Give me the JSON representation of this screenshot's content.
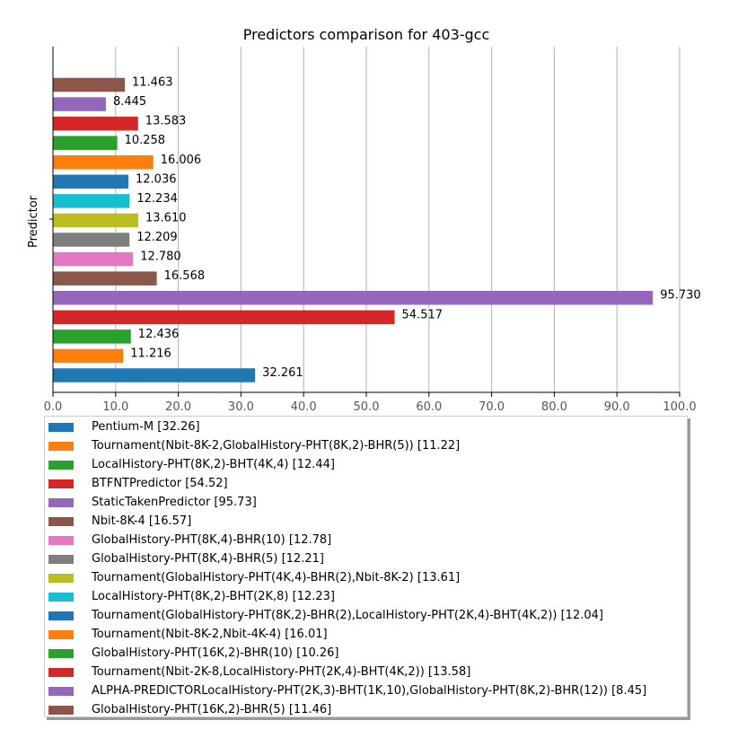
{
  "chart_data": {
    "type": "bar",
    "orientation": "horizontal",
    "title": "Predictors comparison for 403-gcc",
    "xlabel": "",
    "ylabel": "Predictor",
    "xlim": [
      0,
      100
    ],
    "xticks": [
      "0.0",
      "10.0",
      "20.0",
      "30.0",
      "40.0",
      "50.0",
      "60.0",
      "70.0",
      "80.0",
      "90.0",
      "100.0"
    ],
    "grid": "vertical",
    "legend_position": "below",
    "series": [
      {
        "name": "Pentium-M [32.26]",
        "value": 32.261,
        "label": "32.261",
        "color": "#1f77b4"
      },
      {
        "name": "Tournament(Nbit-8K-2,GlobalHistory-PHT(8K,2)-BHR(5)) [11.22]",
        "value": 11.216,
        "label": "11.216",
        "color": "#ff7f0e"
      },
      {
        "name": "LocalHistory-PHT(8K,2)-BHT(4K,4) [12.44]",
        "value": 12.436,
        "label": "12.436",
        "color": "#2ca02c"
      },
      {
        "name": "BTFNTPredictor [54.52]",
        "value": 54.517,
        "label": "54.517",
        "color": "#d62728"
      },
      {
        "name": "StaticTakenPredictor [95.73]",
        "value": 95.73,
        "label": "95.730",
        "color": "#9467bd"
      },
      {
        "name": "Nbit-8K-4 [16.57]",
        "value": 16.568,
        "label": "16.568",
        "color": "#8c564b"
      },
      {
        "name": "GlobalHistory-PHT(8K,4)-BHR(10) [12.78]",
        "value": 12.78,
        "label": "12.780",
        "color": "#e377c2"
      },
      {
        "name": "GlobalHistory-PHT(8K,4)-BHR(5) [12.21]",
        "value": 12.209,
        "label": "12.209",
        "color": "#7f7f7f"
      },
      {
        "name": "Tournament(GlobalHistory-PHT(4K,4)-BHR(2),Nbit-8K-2) [13.61]",
        "value": 13.61,
        "label": "13.610",
        "color": "#bcbd22"
      },
      {
        "name": "LocalHistory-PHT(8K,2)-BHT(2K,8) [12.23]",
        "value": 12.234,
        "label": "12.234",
        "color": "#17becf"
      },
      {
        "name": "Tournament(GlobalHistory-PHT(8K,2)-BHR(2),LocalHistory-PHT(2K,4)-BHT(4K,2)) [12.04]",
        "value": 12.036,
        "label": "12.036",
        "color": "#1f77b4"
      },
      {
        "name": "Tournament(Nbit-8K-2,Nbit-4K-4) [16.01]",
        "value": 16.006,
        "label": "16.006",
        "color": "#ff7f0e"
      },
      {
        "name": "GlobalHistory-PHT(16K,2)-BHR(10) [10.26]",
        "value": 10.258,
        "label": "10.258",
        "color": "#2ca02c"
      },
      {
        "name": "Tournament(Nbit-2K-8,LocalHistory-PHT(2K,4)-BHT(4K,2)) [13.58]",
        "value": 13.583,
        "label": "13.583",
        "color": "#d62728"
      },
      {
        "name": "ALPHA-PREDICTORLocalHistory-PHT(2K,3)-BHT(1K,10),GlobalHistory-PHT(8K,2)-BHR(12)) [8.45]",
        "value": 8.445,
        "label": "8.445",
        "color": "#9467bd"
      },
      {
        "name": "GlobalHistory-PHT(16K,2)-BHR(5) [11.46]",
        "value": 11.463,
        "label": "11.463",
        "color": "#8c564b"
      }
    ]
  }
}
